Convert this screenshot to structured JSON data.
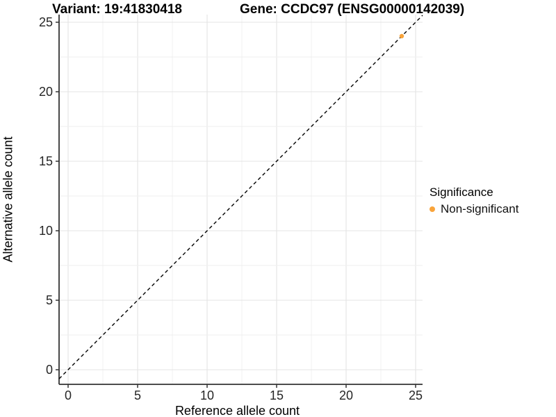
{
  "header": {
    "variant_title": "Variant: 19:41830418",
    "gene_title": "Gene: CCDC97 (ENSG00000142039)"
  },
  "chart_data": {
    "type": "scatter",
    "title": "Variant: 19:41830418    Gene: CCDC97 (ENSG00000142039)",
    "xlabel": "Reference allele count",
    "ylabel": "Alternative allele count",
    "xlim": [
      -0.65,
      25.5
    ],
    "ylim": [
      -1.05,
      25.55
    ],
    "x_ticks": [
      0,
      5,
      10,
      15,
      20,
      25
    ],
    "y_ticks": [
      0,
      5,
      10,
      15,
      20,
      25
    ],
    "minor_grid_step": 2.5,
    "grid": true,
    "series": [
      {
        "name": "Non-significant",
        "color": "#F9A43B",
        "points": [
          {
            "x": 24,
            "y": 24
          }
        ]
      }
    ],
    "reference_line": {
      "slope": 1,
      "intercept": 0,
      "style": "dashed",
      "color": "#000000",
      "meaning": "identity line y = x"
    },
    "legend": {
      "title": "Significance",
      "position": "right"
    }
  },
  "colors": {
    "background": "#ffffff",
    "grid_major": "#e4e4e4",
    "grid_minor": "#efefef",
    "axis_line": "#333333",
    "tick_text": "#262626",
    "title_text": "#000000",
    "point": "#F9A43B"
  }
}
